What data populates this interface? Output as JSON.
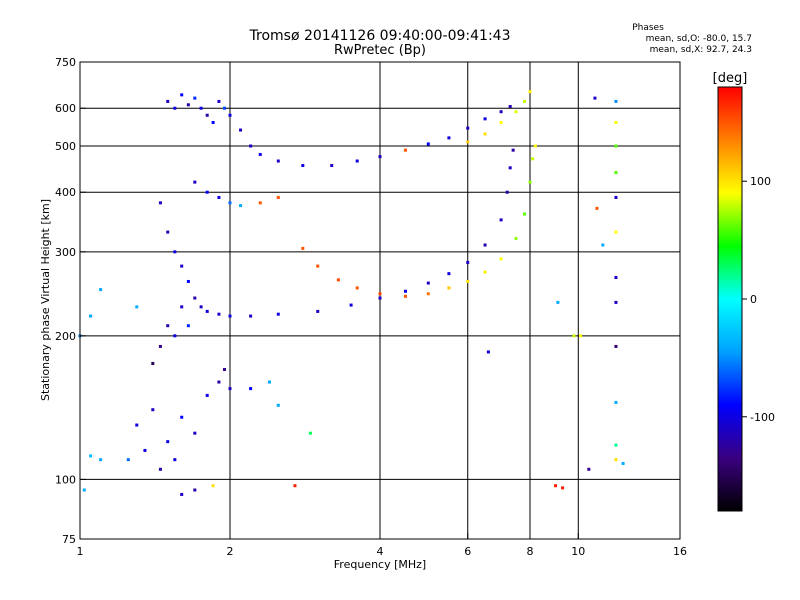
{
  "chart_data": {
    "type": "scatter",
    "title": "Tromsø 20141126 09:40:00-09:41:43",
    "subtitle": "RwPretec (Bp)",
    "xlabel": "Frequency [MHz]",
    "ylabel": "Stationary phase Virtual Height [km]",
    "x_scale": "log",
    "y_scale": "log",
    "xlim": [
      1,
      16
    ],
    "ylim": [
      75,
      750
    ],
    "x_ticks": [
      1,
      2,
      4,
      6,
      8,
      10,
      16
    ],
    "y_ticks": [
      75,
      100,
      200,
      300,
      400,
      500,
      600,
      750
    ],
    "x_gridlines": [
      2,
      4,
      6,
      8,
      10
    ],
    "y_gridlines": [
      100,
      200,
      300,
      400,
      500,
      600
    ],
    "grid": true,
    "phase_box": {
      "title": "Phases",
      "line1": "mean, sd,O: -80.0, 15.7",
      "line2": "mean, sd,X:  92.7, 24.3"
    },
    "colorbar": {
      "label": "[deg]",
      "ticks": [
        100,
        0,
        -100
      ],
      "range": [
        -180,
        180
      ],
      "colormap": [
        "#000000",
        "#3a0080",
        "#0000ff",
        "#00a0ff",
        "#00ffff",
        "#00ff00",
        "#ffff00",
        "#ff8000",
        "#ff0000"
      ]
    },
    "series": [
      {
        "points": [
          [
            1.5,
            620,
            -110
          ],
          [
            1.55,
            600,
            -100
          ],
          [
            1.6,
            640,
            -90
          ],
          [
            1.65,
            610,
            -120
          ],
          [
            1.7,
            630,
            -80
          ],
          [
            1.75,
            600,
            -100
          ],
          [
            1.8,
            580,
            -120
          ],
          [
            1.85,
            560,
            -90
          ],
          [
            1.9,
            620,
            -110
          ],
          [
            1.95,
            600,
            -70
          ],
          [
            2.0,
            580,
            -100
          ],
          [
            2.1,
            540,
            -110
          ],
          [
            2.2,
            500,
            -110
          ],
          [
            2.3,
            480,
            -100
          ],
          [
            2.5,
            465,
            -110
          ],
          [
            2.8,
            455,
            -100
          ],
          [
            3.2,
            455,
            -110
          ],
          [
            3.6,
            465,
            -100
          ],
          [
            4.0,
            475,
            -110
          ],
          [
            4.5,
            490,
            150
          ],
          [
            5.0,
            505,
            -90
          ],
          [
            5.5,
            520,
            -100
          ],
          [
            6.0,
            545,
            -110
          ],
          [
            6.5,
            570,
            -100
          ],
          [
            7.0,
            590,
            -110
          ],
          [
            7.3,
            605,
            -120
          ],
          [
            6.0,
            510,
            110
          ],
          [
            6.5,
            530,
            100
          ],
          [
            7.0,
            560,
            90
          ],
          [
            7.5,
            590,
            85
          ],
          [
            7.8,
            620,
            80
          ],
          [
            8.0,
            650,
            95
          ],
          [
            1.7,
            420,
            -110
          ],
          [
            1.8,
            400,
            -90
          ],
          [
            1.9,
            390,
            -100
          ],
          [
            2.0,
            380,
            -60
          ],
          [
            2.1,
            375,
            -40
          ],
          [
            1.45,
            380,
            -110
          ],
          [
            1.5,
            330,
            -120
          ],
          [
            1.55,
            300,
            -100
          ],
          [
            1.6,
            280,
            -110
          ],
          [
            1.65,
            260,
            -90
          ],
          [
            1.7,
            240,
            -120
          ],
          [
            1.75,
            230,
            -110
          ],
          [
            1.8,
            225,
            -100
          ],
          [
            1.9,
            222,
            -110
          ],
          [
            2.0,
            220,
            -100
          ],
          [
            2.2,
            220,
            -110
          ],
          [
            2.5,
            222,
            -100
          ],
          [
            3.0,
            225,
            -110
          ],
          [
            3.5,
            232,
            -100
          ],
          [
            4.0,
            240,
            -110
          ],
          [
            4.5,
            248,
            -100
          ],
          [
            5.0,
            258,
            -110
          ],
          [
            5.5,
            270,
            -100
          ],
          [
            6.0,
            285,
            -110
          ],
          [
            6.5,
            310,
            -120
          ],
          [
            7.0,
            350,
            -110
          ],
          [
            7.2,
            400,
            -120
          ],
          [
            7.3,
            450,
            -110
          ],
          [
            7.4,
            490,
            -120
          ],
          [
            2.8,
            305,
            150
          ],
          [
            3.0,
            280,
            150
          ],
          [
            3.3,
            262,
            155
          ],
          [
            3.6,
            252,
            150
          ],
          [
            4.0,
            245,
            155
          ],
          [
            4.5,
            242,
            150
          ],
          [
            5.0,
            245,
            140
          ],
          [
            5.5,
            252,
            110
          ],
          [
            6.0,
            260,
            100
          ],
          [
            6.5,
            272,
            95
          ],
          [
            7.0,
            290,
            90
          ],
          [
            7.5,
            320,
            70
          ],
          [
            7.8,
            360,
            60
          ],
          [
            8.0,
            420,
            70
          ],
          [
            8.1,
            470,
            80
          ],
          [
            8.2,
            500,
            90
          ],
          [
            1.4,
            175,
            -150
          ],
          [
            1.45,
            190,
            -130
          ],
          [
            1.5,
            210,
            -120
          ],
          [
            1.55,
            200,
            -100
          ],
          [
            1.6,
            230,
            -110
          ],
          [
            1.3,
            230,
            -40
          ],
          [
            1.65,
            210,
            -80
          ],
          [
            1.3,
            130,
            -100
          ],
          [
            1.4,
            140,
            -110
          ],
          [
            1.5,
            120,
            -100
          ],
          [
            1.6,
            135,
            -90
          ],
          [
            1.7,
            125,
            -110
          ],
          [
            1.8,
            150,
            -100
          ],
          [
            1.9,
            160,
            -120
          ],
          [
            1.95,
            170,
            -130
          ],
          [
            2.0,
            155,
            -110
          ],
          [
            1.25,
            110,
            -60
          ],
          [
            1.35,
            115,
            -100
          ],
          [
            1.45,
            105,
            -120
          ],
          [
            1.55,
            110,
            -100
          ],
          [
            1.1,
            110,
            -40
          ],
          [
            1.05,
            112,
            -30
          ],
          [
            1.02,
            95,
            -40
          ],
          [
            1.1,
            250,
            -40
          ],
          [
            1.05,
            220,
            -40
          ],
          [
            1.0,
            200,
            -50
          ],
          [
            1.6,
            93,
            -110
          ],
          [
            1.7,
            95,
            -120
          ],
          [
            1.85,
            97,
            100
          ],
          [
            2.7,
            97,
            170
          ],
          [
            2.2,
            155,
            -90
          ],
          [
            2.4,
            160,
            -40
          ],
          [
            2.5,
            143,
            -40
          ],
          [
            2.9,
            125,
            30
          ],
          [
            2.3,
            380,
            150
          ],
          [
            2.5,
            390,
            150
          ],
          [
            9.0,
            97,
            170
          ],
          [
            9.8,
            200,
            80
          ],
          [
            10.1,
            200,
            90
          ],
          [
            10.5,
            105,
            -130
          ],
          [
            10.9,
            370,
            150
          ],
          [
            11.2,
            310,
            -40
          ],
          [
            10.8,
            630,
            -110
          ],
          [
            11.9,
            620,
            -50
          ],
          [
            11.9,
            560,
            90
          ],
          [
            11.9,
            500,
            60
          ],
          [
            11.9,
            440,
            60
          ],
          [
            11.9,
            390,
            -110
          ],
          [
            11.9,
            330,
            90
          ],
          [
            11.9,
            265,
            -110
          ],
          [
            11.9,
            235,
            -110
          ],
          [
            11.9,
            190,
            -140
          ],
          [
            11.9,
            145,
            -40
          ],
          [
            11.9,
            118,
            20
          ],
          [
            11.9,
            110,
            100
          ],
          [
            12.3,
            108,
            -40
          ],
          [
            6.6,
            185,
            -100
          ],
          [
            9.1,
            235,
            -40
          ],
          [
            9.3,
            96,
            170
          ]
        ]
      }
    ]
  }
}
